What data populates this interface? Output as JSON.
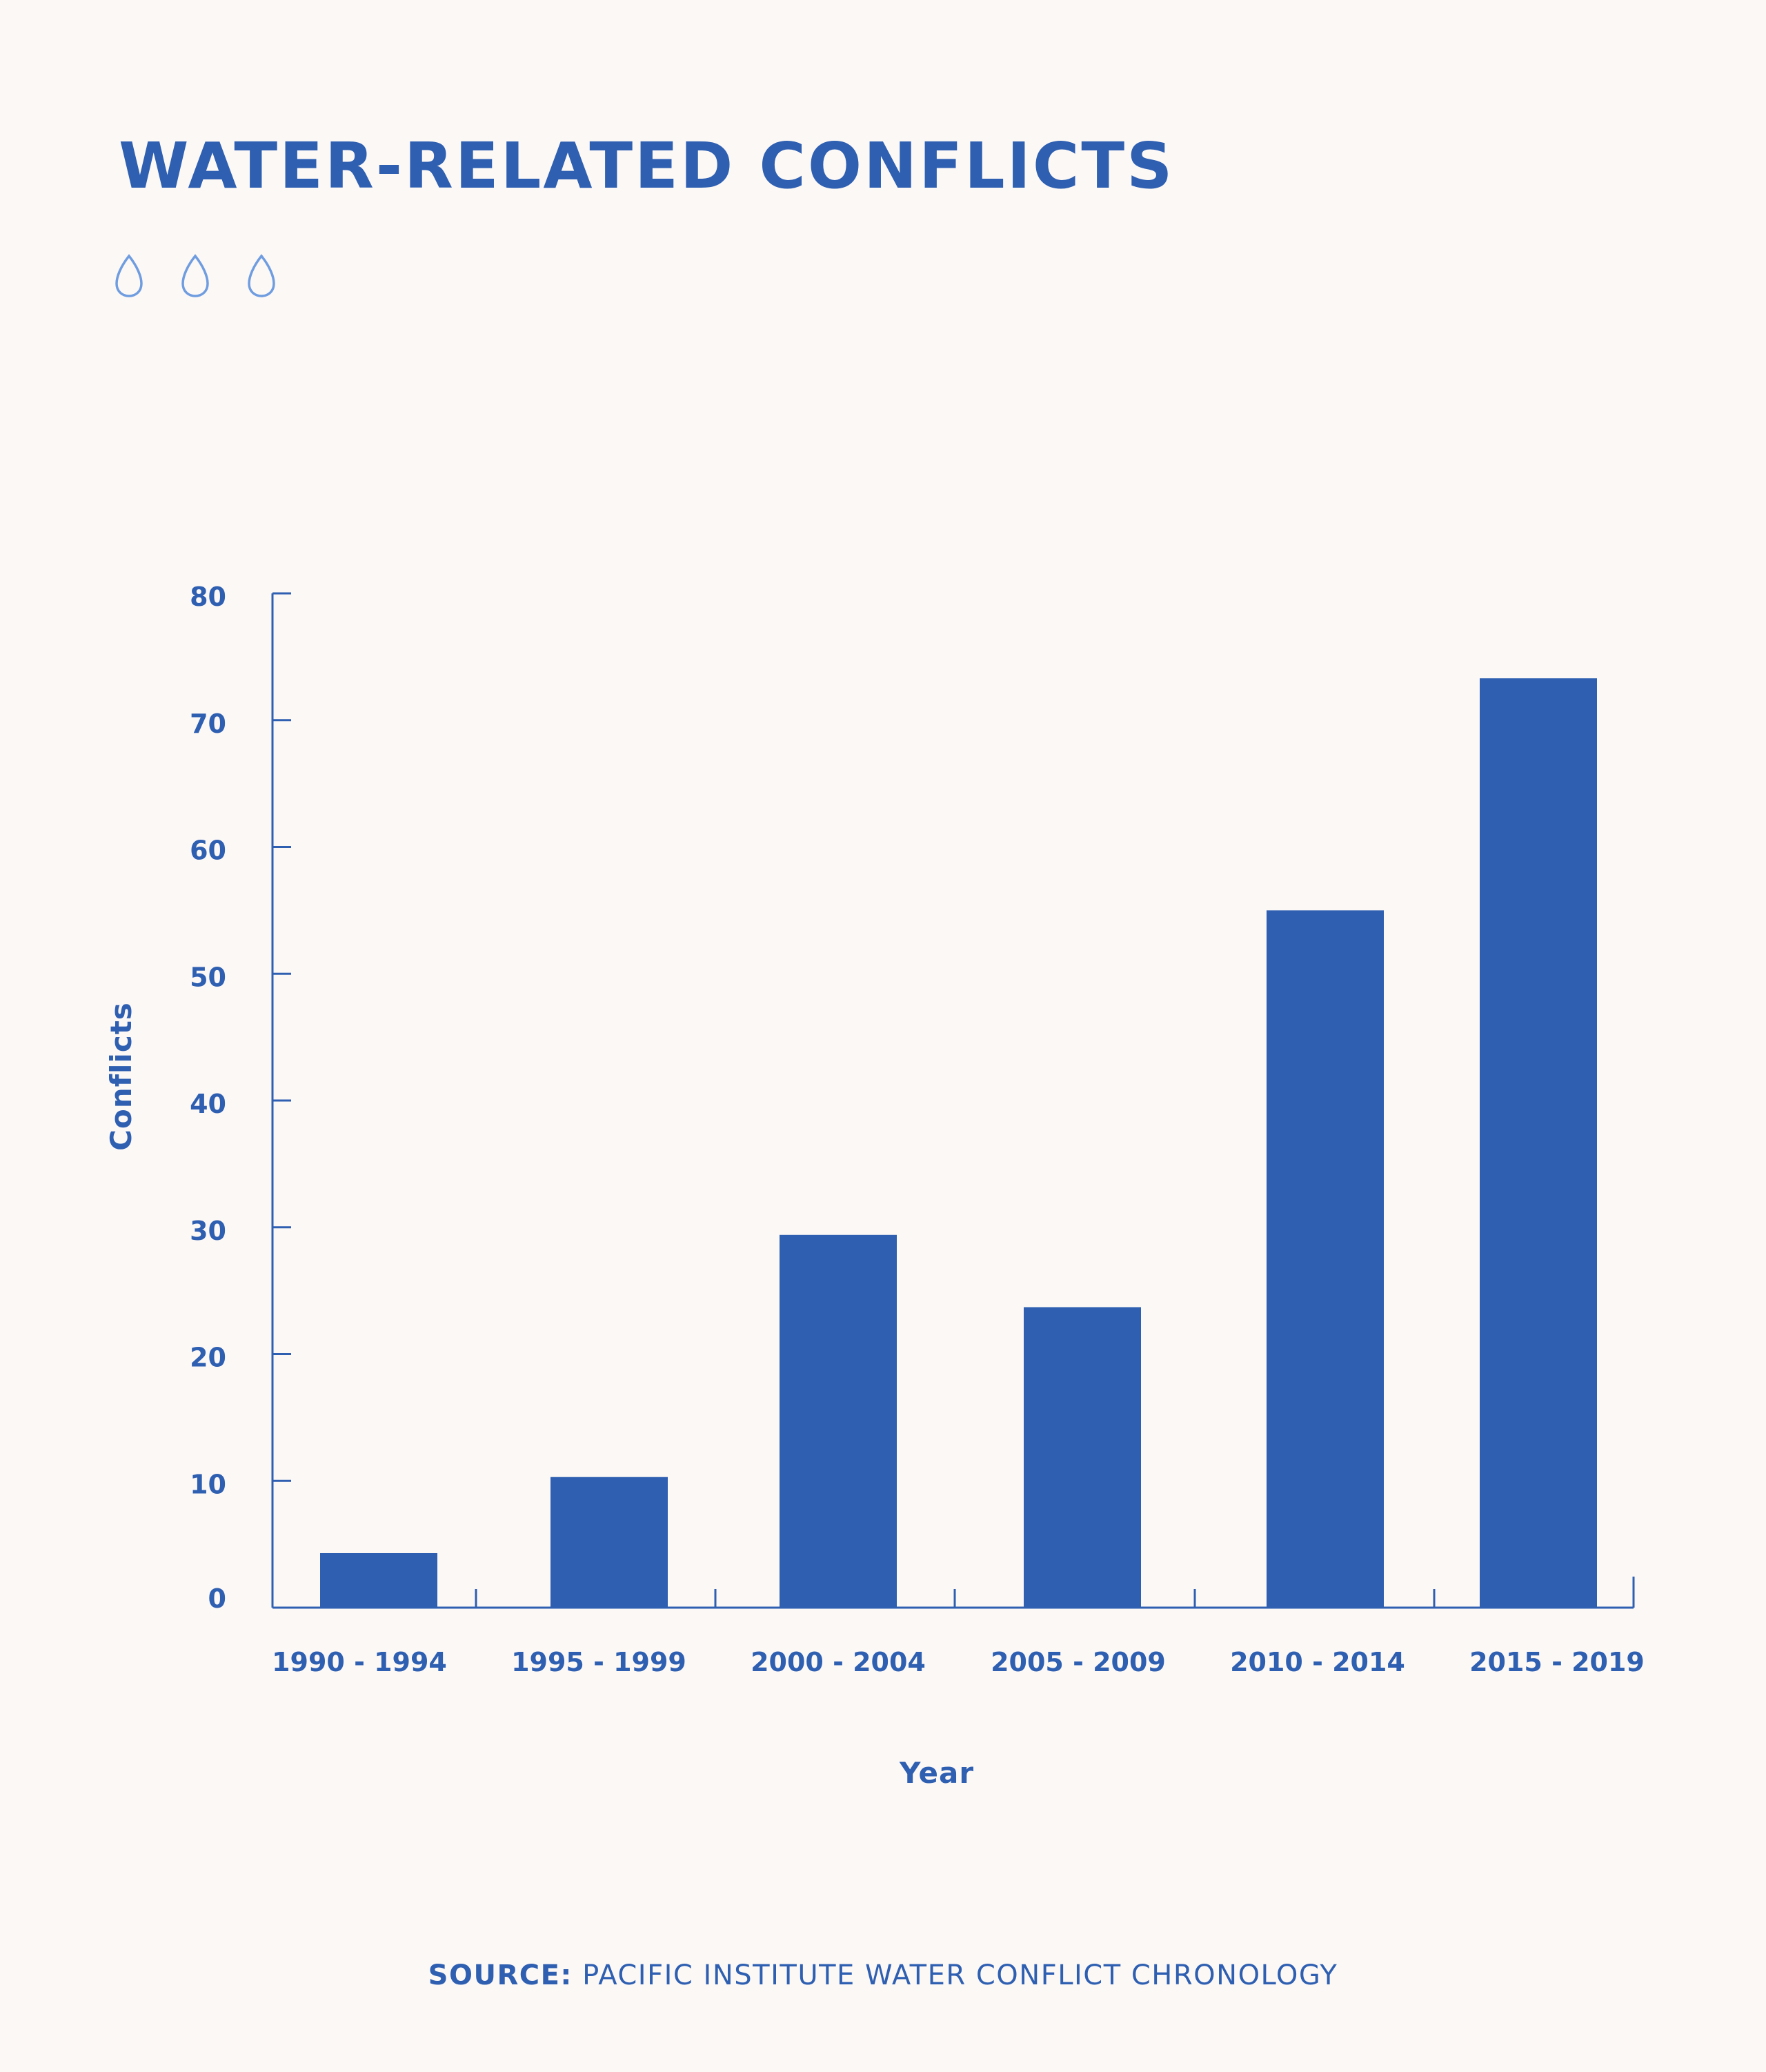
{
  "header": {
    "title": "WATER-RELATED CONFLICTS",
    "decoration_icon": "water-drop-icon",
    "decoration_count": 3
  },
  "colors": {
    "primary": "#2e5fb1",
    "drop_outline": "#6f9de0",
    "background": "#fcf8f6"
  },
  "chart_data": {
    "type": "bar",
    "categories": [
      "1990 - 1994",
      "1995 - 1999",
      "2000 - 2004",
      "2005 - 2009",
      "2010 - 2014",
      "2015 - 2019"
    ],
    "values": [
      4.3,
      10.3,
      29.4,
      23.7,
      55,
      73.3
    ],
    "xlabel": "Year",
    "ylabel": "Conflicts",
    "ylim": [
      0,
      80
    ],
    "yticks": [
      0,
      10,
      20,
      30,
      40,
      50,
      60,
      70,
      80
    ],
    "grid": false,
    "legend": "none"
  },
  "footer": {
    "source_label": "SOURCE:",
    "source_text": "PACIFIC INSTITUTE WATER CONFLICT CHRONOLOGY"
  }
}
